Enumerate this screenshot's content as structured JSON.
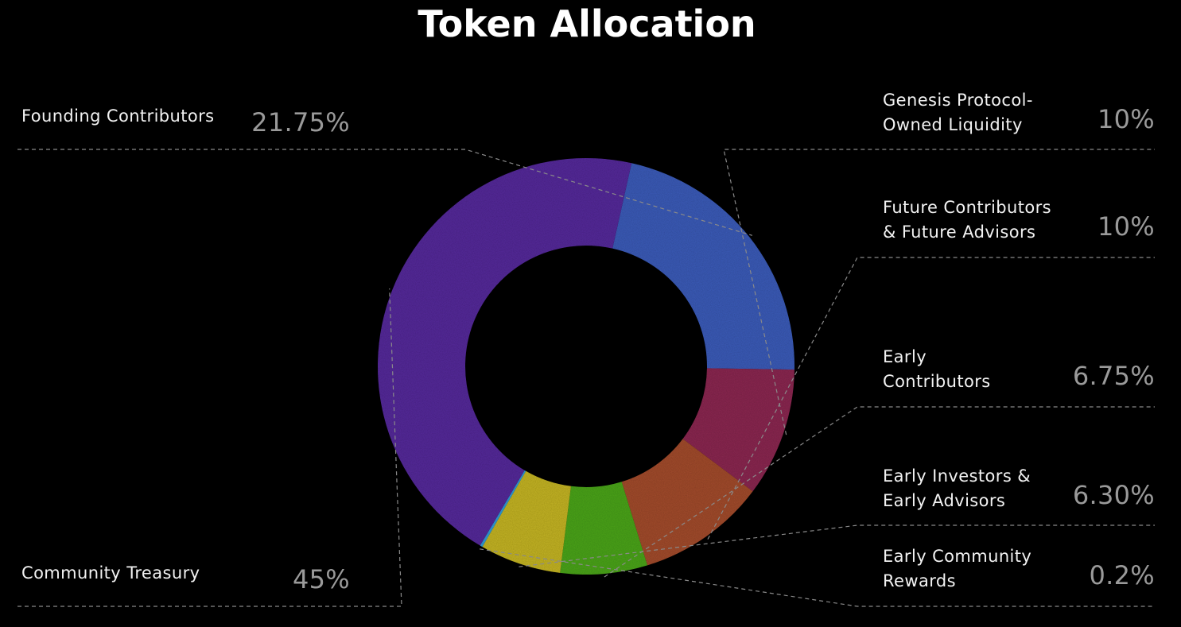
{
  "chart_data": {
    "type": "pie",
    "variant": "donut",
    "title": "Token Allocation",
    "slices": [
      {
        "id": "founding",
        "label_lines": [
          "Founding Contributors"
        ],
        "value": 21.75,
        "value_label": "21.75%",
        "color": "#3b5bb8"
      },
      {
        "id": "genesis",
        "label_lines": [
          "Genesis Protocol-",
          "Owned Liquidity"
        ],
        "value": 10,
        "value_label": "10%",
        "color": "#8a2750"
      },
      {
        "id": "future",
        "label_lines": [
          "Future Contributors",
          "& Future Advisors"
        ],
        "value": 10,
        "value_label": "10%",
        "color": "#a24b2c"
      },
      {
        "id": "early-contrib",
        "label_lines": [
          "Early",
          "Contributors"
        ],
        "value": 6.75,
        "value_label": "6.75%",
        "color": "#4aa41a"
      },
      {
        "id": "early-investors",
        "label_lines": [
          "Early Investors &",
          "Early Advisors"
        ],
        "value": 6.3,
        "value_label": "6.30%",
        "color": "#c4b423"
      },
      {
        "id": "early-community",
        "label_lines": [
          "Early Community",
          "Rewards"
        ],
        "value": 0.2,
        "value_label": "0.2%",
        "color": "#2f9ad8"
      },
      {
        "id": "treasury",
        "label_lines": [
          "Community Treasury"
        ],
        "value": 45,
        "value_label": "45%",
        "color": "#55299a"
      }
    ]
  }
}
